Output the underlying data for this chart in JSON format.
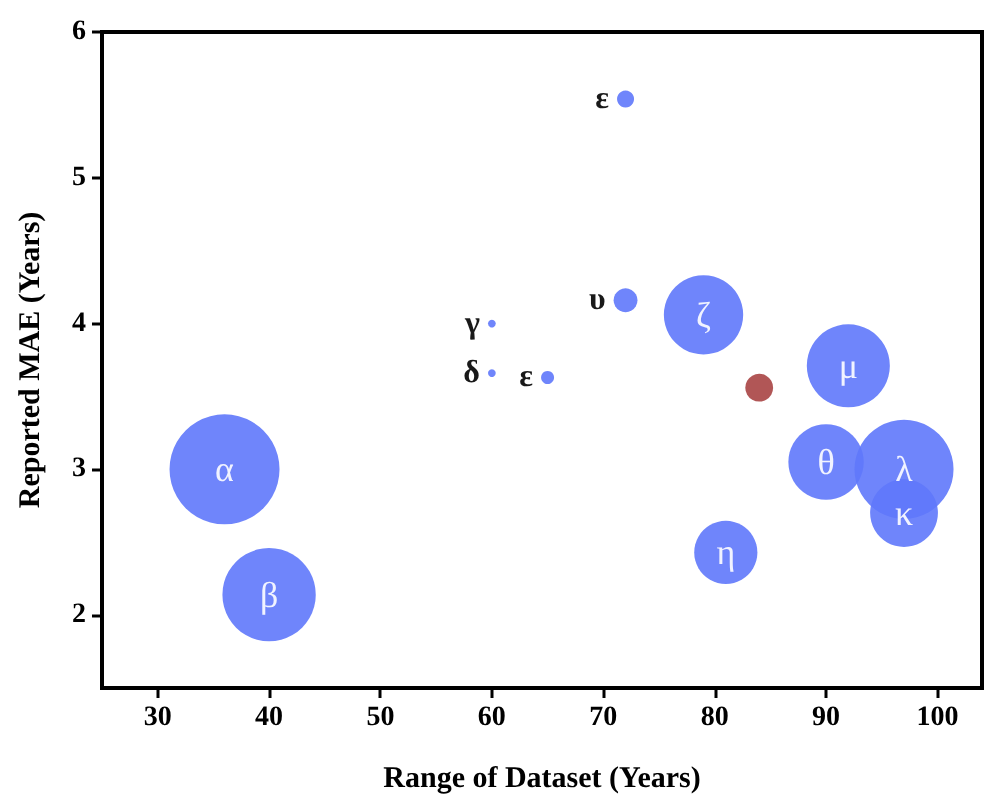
{
  "chart_data": {
    "type": "bubble",
    "xlabel": "Range of Dataset (Years)",
    "ylabel": "Reported MAE (Years)",
    "xlim": [
      25,
      104
    ],
    "xticks": [
      30,
      40,
      50,
      60,
      70,
      80,
      90,
      100
    ],
    "ylim": [
      1.5,
      6
    ],
    "yticks": [
      2,
      3,
      4,
      5,
      6
    ],
    "grid": false,
    "series": [
      {
        "color": "#5f78fb",
        "x": [
          36,
          40,
          60,
          60,
          65,
          72,
          72,
          79,
          92,
          90,
          97,
          97,
          81
        ],
        "values": [
          3.0,
          2.14,
          4.0,
          3.66,
          3.63,
          5.54,
          4.16,
          4.06,
          3.71,
          3.05,
          3.0,
          2.7,
          2.43
        ],
        "sizes": [
          1,
          0.72,
          0.005,
          0.005,
          0.014,
          0.024,
          0.047,
          0.52,
          0.57,
          0.47,
          0.81,
          0.38,
          0.33
        ],
        "value_labels": [
          "α",
          "β",
          "γ",
          "δ",
          "ε",
          "ε",
          "υ",
          "ζ",
          "μ",
          "θ",
          "λ",
          "κ",
          "η"
        ]
      },
      {
        "color": "#a84444",
        "x": [
          84
        ],
        "values": [
          3.56
        ],
        "sizes": [
          0.064
        ]
      }
    ]
  }
}
